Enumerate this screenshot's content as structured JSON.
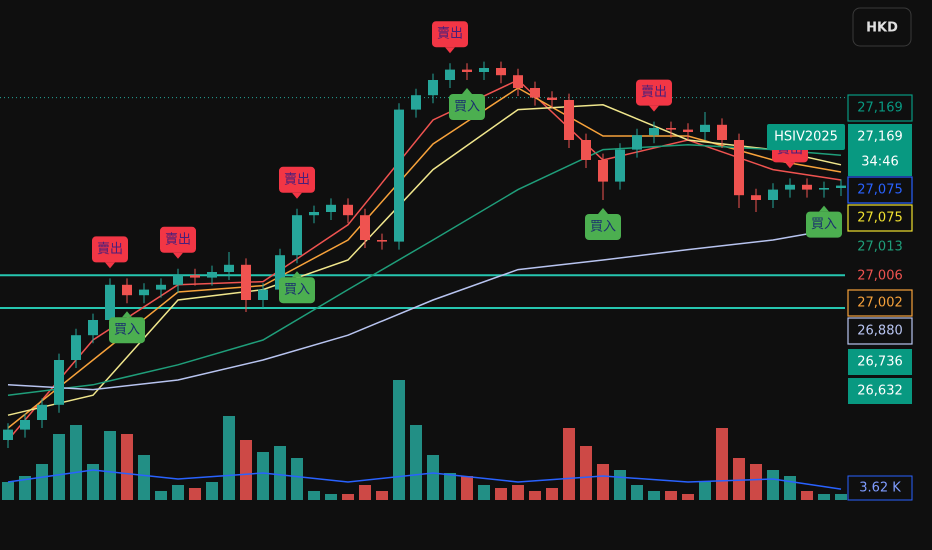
{
  "header": {
    "currency": "HKD"
  },
  "chart_data": {
    "type": "candlestick",
    "ylim": [
      26650,
      27200
    ],
    "up_color": "#26a69a",
    "down_color": "#ef5350",
    "open": [
      26700,
      26713,
      26725,
      26744,
      26800,
      26831,
      26850,
      26894,
      26881,
      26888,
      26894,
      26906,
      26903,
      26910,
      26919,
      26875,
      26888,
      26931,
      26981,
      26985,
      26994,
      26981,
      26950,
      26948,
      27113,
      27131,
      27150,
      27163,
      27160,
      27165,
      27156,
      27140,
      27128,
      27125,
      27075,
      27050,
      27023,
      27063,
      27081,
      27090,
      27088,
      27085,
      27094,
      27075,
      27006,
      27000,
      27013,
      27019,
      27013,
      27015
    ],
    "high": [
      26721,
      26733,
      26752,
      26808,
      26839,
      26858,
      26902,
      26902,
      26896,
      26902,
      26914,
      26914,
      26918,
      26935,
      26927,
      26896,
      26939,
      26989,
      26993,
      27002,
      27002,
      26989,
      26958,
      27121,
      27139,
      27158,
      27171,
      27171,
      27173,
      27173,
      27164,
      27148,
      27136,
      27133,
      27083,
      27058,
      27071,
      27089,
      27098,
      27098,
      27096,
      27110,
      27102,
      27083,
      27014,
      27021,
      27027,
      27027,
      27023,
      27026
    ],
    "low": [
      26690,
      26703,
      26715,
      26734,
      26790,
      26821,
      26840,
      26871,
      26871,
      26878,
      26884,
      26893,
      26893,
      26900,
      26860,
      26865,
      26878,
      26921,
      26971,
      26975,
      26971,
      26940,
      26938,
      26938,
      27103,
      27121,
      27140,
      27150,
      27150,
      27146,
      27130,
      27118,
      27115,
      27065,
      27040,
      27000,
      27013,
      27053,
      27071,
      27078,
      27075,
      27075,
      27065,
      26990,
      26985,
      26990,
      27003,
      27003,
      27003,
      27005
    ],
    "close": [
      26713,
      26725,
      26744,
      26800,
      26831,
      26850,
      26894,
      26881,
      26888,
      26894,
      26906,
      26903,
      26910,
      26919,
      26875,
      26888,
      26931,
      26981,
      26985,
      26994,
      26981,
      26950,
      26948,
      27113,
      27131,
      27150,
      27163,
      27160,
      27165,
      27156,
      27140,
      27128,
      27125,
      27075,
      27050,
      27023,
      27063,
      27081,
      27090,
      27088,
      27085,
      27094,
      27075,
      27006,
      27000,
      27013,
      27019,
      27013,
      27015,
      27018
    ],
    "moving_averages": [
      {
        "color": "#ef5350",
        "x": [
          0,
          5,
          10,
          15,
          20,
          25,
          30,
          35,
          40,
          45,
          49
        ],
        "values": [
          26700,
          26825,
          26894,
          26898,
          26969,
          27100,
          27150,
          27050,
          27075,
          27038,
          27025
        ]
      },
      {
        "color": "#f7a23b",
        "x": [
          0,
          5,
          10,
          15,
          20,
          25,
          30,
          35,
          40,
          45,
          49
        ],
        "values": [
          26715,
          26800,
          26885,
          26893,
          26950,
          27070,
          27140,
          27080,
          27080,
          27050,
          27035
        ]
      },
      {
        "color": "#f0e68c",
        "x": [
          0,
          5,
          10,
          15,
          20,
          25,
          30,
          35,
          40,
          45,
          49
        ],
        "values": [
          26731,
          26756,
          26875,
          26888,
          26925,
          27038,
          27113,
          27119,
          27075,
          27063,
          27044
        ]
      },
      {
        "color": "#1f9e7a",
        "x": [
          0,
          5,
          10,
          15,
          20,
          25,
          30,
          35,
          40,
          45,
          49
        ],
        "values": [
          26756,
          26769,
          26794,
          26825,
          26888,
          26950,
          27013,
          27063,
          27069,
          27063,
          27056
        ]
      },
      {
        "color": "#b8c4f0",
        "x": [
          0,
          5,
          10,
          15,
          20,
          25,
          30,
          35,
          40,
          45,
          49
        ],
        "values": [
          26769,
          26763,
          26775,
          26800,
          26831,
          26875,
          26913,
          26925,
          26938,
          26950,
          26965
        ]
      }
    ],
    "levels": [
      {
        "value": 26906,
        "color": "#26c6b0"
      },
      {
        "value": 26865,
        "color": "#26c6b0"
      }
    ],
    "dotted_level": {
      "value": 27128,
      "color": "#26a69a"
    },
    "signals": [
      {
        "label": "賣出",
        "index": 6,
        "side": "sell"
      },
      {
        "label": "賣出",
        "index": 10,
        "side": "sell"
      },
      {
        "label": "賣出",
        "index": 17,
        "side": "sell"
      },
      {
        "label": "賣出",
        "index": 26,
        "side": "sell"
      },
      {
        "label": "賣出",
        "index": 38,
        "side": "sell"
      },
      {
        "label": "賣出",
        "index": 46,
        "side": "sell"
      },
      {
        "label": "買入",
        "index": 7,
        "side": "buy"
      },
      {
        "label": "買入",
        "index": 17,
        "side": "buy"
      },
      {
        "label": "買入",
        "index": 27,
        "side": "buy"
      },
      {
        "label": "買入",
        "index": 35,
        "side": "buy"
      },
      {
        "label": "買入",
        "index": 48,
        "side": "buy"
      }
    ],
    "volume": {
      "vlim": [
        0,
        40
      ],
      "values": [
        6,
        8,
        12,
        22,
        25,
        12,
        23,
        22,
        15,
        3,
        5,
        4,
        6,
        28,
        20,
        16,
        18,
        14,
        3,
        2,
        2,
        5,
        3,
        40,
        25,
        15,
        9,
        8,
        5,
        4,
        5,
        3,
        4,
        24,
        18,
        12,
        10,
        5,
        3,
        3,
        2,
        6,
        24,
        14,
        12,
        10,
        8,
        3,
        2,
        2
      ],
      "ma_color": "#2962ff",
      "ma_x": [
        0,
        5,
        10,
        15,
        20,
        25,
        30,
        35,
        40,
        45,
        49
      ],
      "ma_values": [
        6,
        10,
        7,
        9,
        6,
        9,
        6,
        8,
        6,
        7,
        3.62
      ],
      "tag": {
        "value": 3.62,
        "label": "3.62 K"
      }
    },
    "symbol_tag": {
      "label": "HSIV2025",
      "value": 27169,
      "price_label": "27,169",
      "countdown": "34:46"
    },
    "price_tags": [
      {
        "value": 27169,
        "label": "27,169",
        "color": "#089981",
        "style": "outline"
      },
      {
        "value": 27075,
        "label": "27,075",
        "color": "#2962ff",
        "style": "outline"
      },
      {
        "value": 27075,
        "label": "27,075",
        "color": "#f0e130",
        "style": "outline"
      },
      {
        "value": 27013,
        "label": "27,013",
        "color": "#1f9e7a",
        "style": "plain"
      },
      {
        "value": 27006,
        "label": "27,006",
        "color": "#ef5350",
        "style": "plain"
      },
      {
        "value": 27002,
        "label": "27,002",
        "color": "#f7a23b",
        "style": "outline"
      },
      {
        "value": 26880,
        "label": "26,880",
        "color": "#b8c4f0",
        "style": "outline"
      },
      {
        "value": 26736,
        "label": "26,736",
        "color": "#089981",
        "style": "solid"
      },
      {
        "value": 26632,
        "label": "26,632",
        "color": "#089981",
        "style": "solid"
      }
    ]
  }
}
